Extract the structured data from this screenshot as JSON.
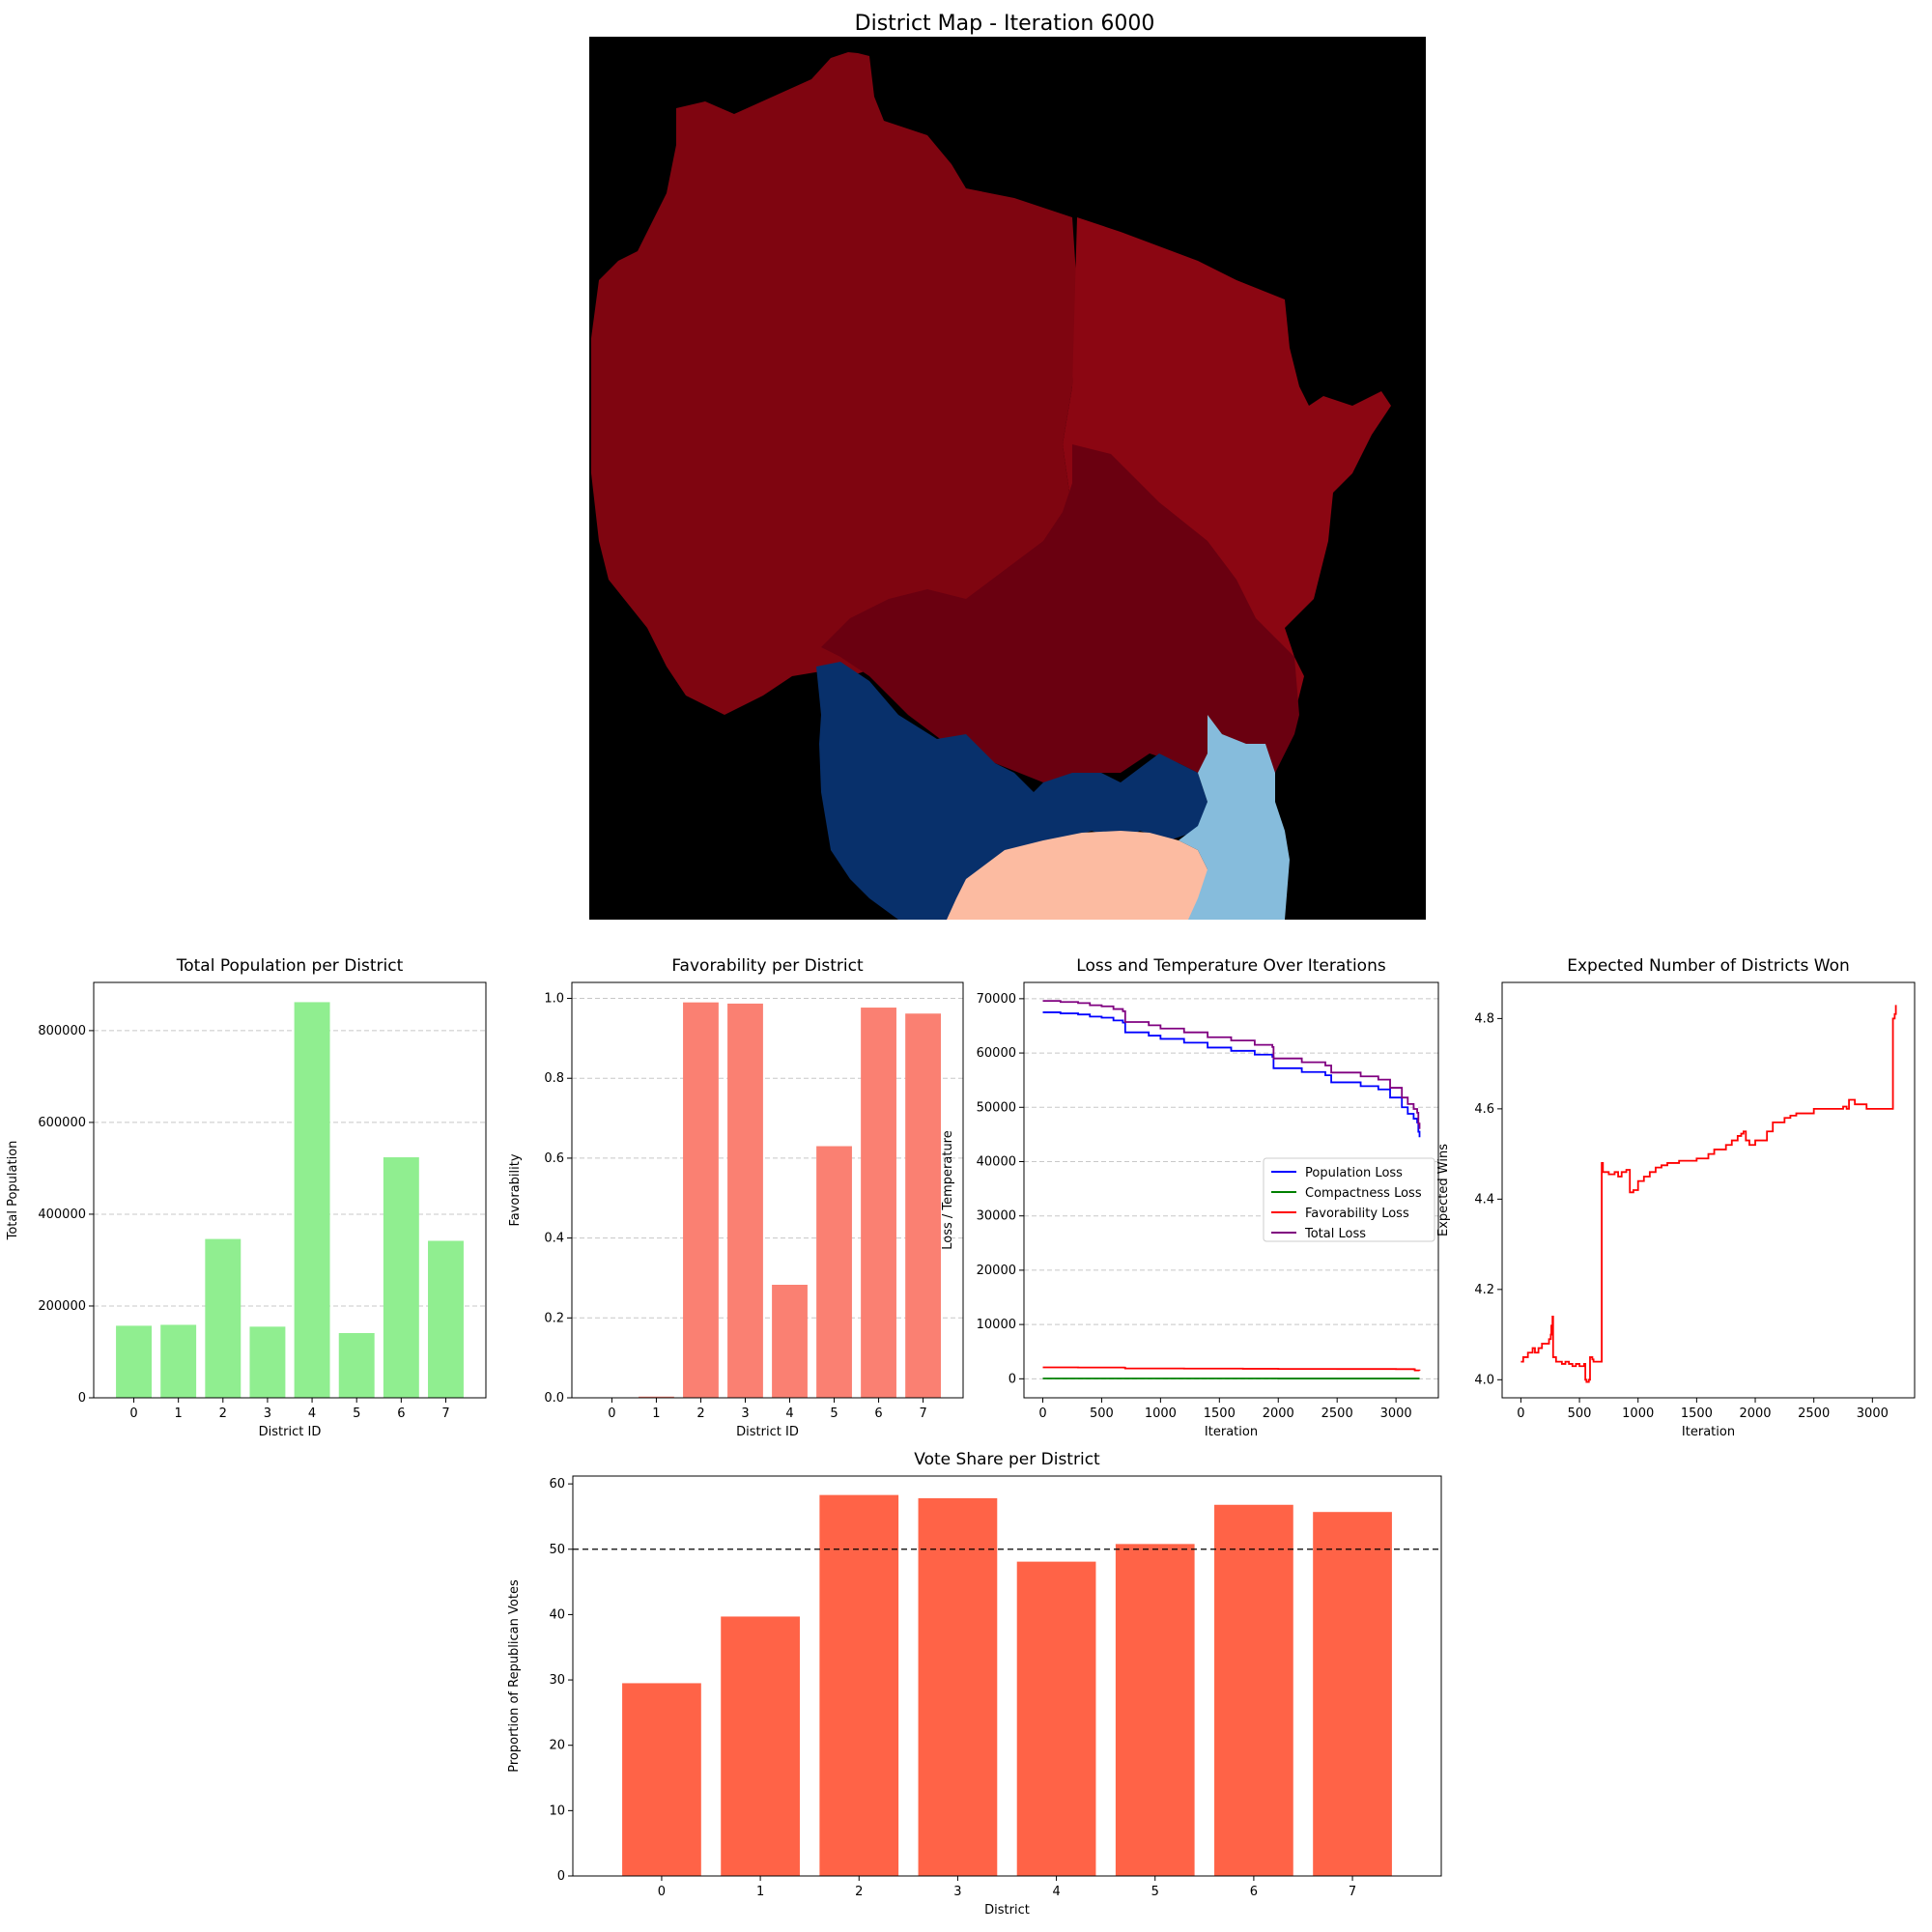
{
  "map": {
    "title": "District Map - Iteration 6000",
    "colors": {
      "background": "#000000",
      "district_north": "#7f0510",
      "district_northeast": "#8b0612",
      "district_central_east": "#6a0010",
      "district_southwest": "#08306b",
      "district_south": "#fcbba1",
      "district_southeast": "#86bcdc"
    }
  },
  "chart_data": [
    {
      "id": "population",
      "type": "bar",
      "title": "Total Population per District",
      "xlabel": "District ID",
      "ylabel": "Total Population",
      "categories": [
        "0",
        "1",
        "2",
        "3",
        "4",
        "5",
        "6",
        "7"
      ],
      "values": [
        157000,
        159000,
        346000,
        155000,
        862000,
        141000,
        524000,
        342000
      ],
      "ylim": [
        0,
        905000
      ],
      "yticks": [
        0,
        200000,
        400000,
        600000,
        800000
      ],
      "ytick_labels": [
        "0",
        "200000",
        "400000",
        "600000",
        "800000"
      ],
      "color": "#90ee90",
      "grid": "y-dashed"
    },
    {
      "id": "favorability",
      "type": "bar",
      "title": "Favorability per District",
      "xlabel": "District ID",
      "ylabel": "Favorability",
      "categories": [
        "0",
        "1",
        "2",
        "3",
        "4",
        "5",
        "6",
        "7"
      ],
      "values": [
        0.0,
        0.003,
        0.99,
        0.987,
        0.283,
        0.63,
        0.977,
        0.962
      ],
      "ylim": [
        0,
        1.04
      ],
      "yticks": [
        0,
        0.2,
        0.4,
        0.6,
        0.8,
        1.0
      ],
      "ytick_labels": [
        "0.0",
        "0.2",
        "0.4",
        "0.6",
        "0.8",
        "1.0"
      ],
      "color": "#fa8072",
      "grid": "y-dashed"
    },
    {
      "id": "loss",
      "type": "line",
      "title": "Loss and Temperature Over Iterations",
      "xlabel": "Iteration",
      "ylabel": "Loss / Temperature",
      "xlim": [
        -160,
        3360
      ],
      "ylim": [
        -3500,
        73000
      ],
      "xticks": [
        0,
        500,
        1000,
        1500,
        2000,
        2500,
        3000
      ],
      "xtick_labels": [
        "0",
        "500",
        "1000",
        "1500",
        "2000",
        "2500",
        "3000"
      ],
      "yticks": [
        0,
        10000,
        20000,
        30000,
        40000,
        50000,
        60000,
        70000
      ],
      "ytick_labels": [
        "0",
        "10000",
        "20000",
        "30000",
        "40000",
        "50000",
        "60000",
        "70000"
      ],
      "grid": "y-dashed",
      "legend": "center-right",
      "series": [
        {
          "name": "Population Loss",
          "color": "#0000ff",
          "x": [
            0,
            150,
            300,
            400,
            500,
            600,
            680,
            700,
            900,
            1000,
            1200,
            1400,
            1600,
            1800,
            1950,
            1960,
            2200,
            2400,
            2450,
            2700,
            2850,
            2950,
            3050,
            3100,
            3150,
            3180,
            3190,
            3200
          ],
          "y": [
            67500,
            67300,
            67100,
            66700,
            66500,
            66000,
            65600,
            63800,
            63200,
            62600,
            61900,
            61000,
            60400,
            59700,
            59300,
            57200,
            56500,
            55900,
            54600,
            53900,
            53300,
            51800,
            50000,
            48800,
            47900,
            47200,
            45500,
            44500
          ]
        },
        {
          "name": "Compactness Loss",
          "color": "#008000",
          "x": [
            0,
            500,
            1000,
            1500,
            2000,
            2500,
            3000,
            3200
          ],
          "y": [
            60,
            60,
            55,
            55,
            50,
            50,
            50,
            50
          ]
        },
        {
          "name": "Favorability Loss",
          "color": "#ff0000",
          "x": [
            0,
            300,
            690,
            700,
            1200,
            1700,
            2000,
            2500,
            3000,
            3150,
            3160,
            3200
          ],
          "y": [
            2100,
            2080,
            2060,
            1900,
            1880,
            1850,
            1820,
            1800,
            1780,
            1760,
            1550,
            1500
          ]
        },
        {
          "name": "Total Loss",
          "color": "#800080",
          "x": [
            0,
            150,
            300,
            400,
            500,
            600,
            680,
            700,
            900,
            1000,
            1200,
            1400,
            1600,
            1800,
            1950,
            1960,
            2200,
            2400,
            2450,
            2700,
            2850,
            2950,
            3050,
            3100,
            3150,
            3180,
            3190,
            3200
          ],
          "y": [
            69600,
            69400,
            69200,
            68800,
            68600,
            68100,
            67700,
            65700,
            65100,
            64500,
            63800,
            62900,
            62300,
            61500,
            61100,
            59000,
            58300,
            57700,
            56400,
            55700,
            55100,
            53600,
            51800,
            50600,
            49700,
            49000,
            47000,
            46000
          ]
        }
      ]
    },
    {
      "id": "expected",
      "type": "line",
      "title": "Expected Number of Districts Won",
      "xlabel": "Iteration",
      "ylabel": "Expected Wins",
      "xlim": [
        -160,
        3360
      ],
      "ylim": [
        3.96,
        4.88
      ],
      "xticks": [
        0,
        500,
        1000,
        1500,
        2000,
        2500,
        3000
      ],
      "xtick_labels": [
        "0",
        "500",
        "1000",
        "1500",
        "2000",
        "2500",
        "3000"
      ],
      "yticks": [
        4.0,
        4.2,
        4.4,
        4.6,
        4.8
      ],
      "ytick_labels": [
        "4.0",
        "4.2",
        "4.4",
        "4.6",
        "4.8"
      ],
      "series": [
        {
          "name": "Expected Wins",
          "color": "#ff0000",
          "x": [
            0,
            20,
            40,
            60,
            80,
            100,
            120,
            150,
            180,
            210,
            240,
            255,
            260,
            270,
            275,
            280,
            300,
            320,
            350,
            380,
            410,
            440,
            470,
            500,
            520,
            540,
            550,
            560,
            580,
            590,
            600,
            610,
            620,
            640,
            660,
            680,
            690,
            700,
            720,
            750,
            800,
            830,
            860,
            900,
            930,
            960,
            1000,
            1050,
            1100,
            1150,
            1200,
            1250,
            1300,
            1350,
            1400,
            1450,
            1500,
            1550,
            1600,
            1650,
            1700,
            1750,
            1800,
            1850,
            1880,
            1900,
            1920,
            1950,
            2000,
            2050,
            2100,
            2150,
            2200,
            2250,
            2300,
            2350,
            2400,
            2450,
            2500,
            2550,
            2600,
            2650,
            2700,
            2750,
            2780,
            2800,
            2850,
            2900,
            2950,
            3000,
            3050,
            3100,
            3150,
            3170,
            3175,
            3180,
            3190,
            3200
          ],
          "y": [
            4.04,
            4.05,
            4.05,
            4.06,
            4.06,
            4.07,
            4.06,
            4.07,
            4.08,
            4.08,
            4.09,
            4.1,
            4.12,
            4.14,
            4.05,
            4.05,
            4.04,
            4.04,
            4.035,
            4.04,
            4.035,
            4.03,
            4.035,
            4.03,
            4.03,
            4.035,
            4.0,
            3.995,
            4.0,
            4.05,
            4.05,
            4.045,
            4.04,
            4.04,
            4.04,
            4.04,
            4.48,
            4.46,
            4.46,
            4.455,
            4.46,
            4.45,
            4.46,
            4.465,
            4.415,
            4.42,
            4.44,
            4.45,
            4.46,
            4.47,
            4.475,
            4.48,
            4.48,
            4.485,
            4.485,
            4.485,
            4.49,
            4.49,
            4.5,
            4.51,
            4.51,
            4.52,
            4.53,
            4.54,
            4.545,
            4.55,
            4.53,
            4.52,
            4.53,
            4.53,
            4.55,
            4.57,
            4.57,
            4.58,
            4.585,
            4.59,
            4.59,
            4.59,
            4.6,
            4.6,
            4.6,
            4.6,
            4.6,
            4.605,
            4.6,
            4.62,
            4.61,
            4.61,
            4.6,
            4.6,
            4.6,
            4.6,
            4.6,
            4.6,
            4.8,
            4.8,
            4.81,
            4.83
          ]
        }
      ]
    },
    {
      "id": "vote_share",
      "type": "bar",
      "title": "Vote Share per District",
      "xlabel": "District",
      "ylabel": "Proportion of Republican Votes",
      "categories": [
        "0",
        "1",
        "2",
        "3",
        "4",
        "5",
        "6",
        "7"
      ],
      "values": [
        29.5,
        39.7,
        58.3,
        57.8,
        48.1,
        50.8,
        56.8,
        55.7
      ],
      "ylim": [
        0,
        61.2
      ],
      "yticks": [
        0,
        10,
        20,
        30,
        40,
        50,
        60
      ],
      "ytick_labels": [
        "0",
        "10",
        "20",
        "30",
        "40",
        "50",
        "60"
      ],
      "reference_line": 50,
      "color": "#ff6347"
    }
  ]
}
